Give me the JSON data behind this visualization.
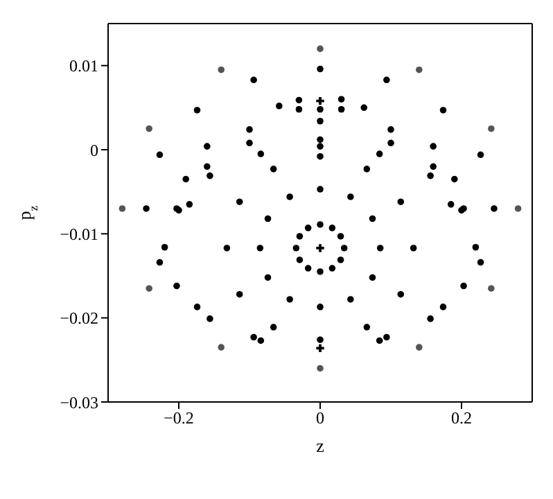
{
  "chart_data": {
    "type": "scatter",
    "xlabel": "z",
    "ylabel": "p$_{z}$",
    "xlim": [
      -0.3,
      0.3
    ],
    "xticks": [
      -0.2,
      0,
      0.2
    ],
    "ylim": [
      -0.03,
      0.015
    ],
    "yticks": [
      -0.03,
      -0.02,
      -0.01,
      0,
      0.01
    ],
    "grid": false,
    "marker": "circle",
    "series": [
      {
        "color": "#000000",
        "x": [
          0.246,
          0.227,
          0.174,
          0.094,
          0,
          -0.094,
          -0.174,
          -0.227,
          -0.246,
          -0.227,
          -0.174,
          -0.094,
          0.094,
          0.174,
          0.227
        ],
        "values": [
          -0.007,
          -0.0006,
          0.0047,
          0.0083,
          0.0096,
          0.0083,
          0.0047,
          -0.0006,
          -0.007,
          -0.0134,
          -0.0187,
          -0.0223,
          -0.0223,
          -0.0187,
          -0.0134
        ]
      },
      {
        "color": "#000000",
        "x": [
          0.22,
          0.203,
          0.156,
          0.084,
          0,
          -0.084,
          -0.156,
          -0.203,
          -0.22,
          -0.203,
          -0.156,
          -0.084,
          0.084,
          0.156,
          0.203
        ],
        "values": [
          -0.0116,
          -0.007,
          -0.0031,
          -0.0005,
          0.0004,
          -0.0005,
          -0.0031,
          -0.007,
          -0.0116,
          -0.0162,
          -0.0201,
          -0.0227,
          -0.0227,
          -0.0201,
          -0.0162
        ]
      },
      {
        "color": "#000000",
        "x": [
          0,
          0.1,
          0.16,
          0.19,
          0.2,
          0.185,
          0.16,
          0.1,
          0,
          -0.1,
          -0.16,
          -0.185,
          -0.2,
          -0.19,
          -0.16,
          -0.1
        ],
        "values": [
          0.0034,
          0.0024,
          0.0004,
          -0.0035,
          -0.0072,
          -0.0065,
          -0.002,
          0.0008,
          0.0012,
          0.0008,
          -0.002,
          -0.0065,
          -0.0072,
          -0.0035,
          0.0004,
          0.0024
        ]
      },
      {
        "color": "#000000",
        "x": [
          -0.058,
          -0.03,
          0.03,
          0.062,
          0.03,
          0,
          -0.03
        ],
        "values": [
          0.0052,
          0.0059,
          0.006,
          0.005,
          0.0048,
          0.0048,
          0.0048
        ]
      },
      {
        "color": "#000000",
        "x": [
          0.034,
          0.029,
          0.017,
          0,
          -0.017,
          -0.029,
          -0.034,
          -0.029,
          -0.017,
          0,
          0.017,
          0.029
        ],
        "values": [
          -0.0117,
          -0.0103,
          -0.0093,
          -0.0089,
          -0.0093,
          -0.0103,
          -0.0117,
          -0.0131,
          -0.0141,
          -0.0145,
          -0.0141,
          -0.0131
        ]
      },
      {
        "color": "#000000",
        "x": [
          0.085,
          0.074,
          0.043,
          0,
          -0.043,
          -0.074,
          -0.085,
          -0.074,
          -0.043,
          0,
          0.043,
          0.074
        ],
        "values": [
          -0.0117,
          -0.0082,
          -0.0056,
          -0.0047,
          -0.0056,
          -0.0082,
          -0.0117,
          -0.0152,
          -0.0178,
          -0.0187,
          -0.0178,
          -0.0152
        ]
      },
      {
        "color": "#000000",
        "x": [
          0.132,
          0.114,
          0.066,
          0,
          -0.066,
          -0.114,
          -0.132,
          -0.114,
          -0.066,
          0,
          0.066,
          0.114
        ],
        "values": [
          -0.0117,
          -0.0062,
          -0.0023,
          -0.0008,
          -0.0023,
          -0.0062,
          -0.0117,
          -0.0172,
          -0.0211,
          -0.0226,
          -0.0211,
          -0.0172
        ]
      },
      {
        "color": "#555555",
        "x": [
          0.28,
          0.242,
          0.14,
          0,
          -0.14,
          -0.242,
          -0.28,
          -0.242,
          -0.14,
          0,
          0.14,
          0.242
        ],
        "values": [
          -0.007,
          0.0025,
          0.0095,
          0.012,
          0.0095,
          0.0025,
          -0.007,
          -0.0165,
          -0.0235,
          -0.026,
          -0.0235,
          -0.0165
        ]
      },
      {
        "marker": "cross",
        "color": "#000000",
        "x": [
          0,
          0,
          0
        ],
        "values": [
          -0.0117,
          0.0058,
          -0.0236
        ]
      }
    ]
  }
}
